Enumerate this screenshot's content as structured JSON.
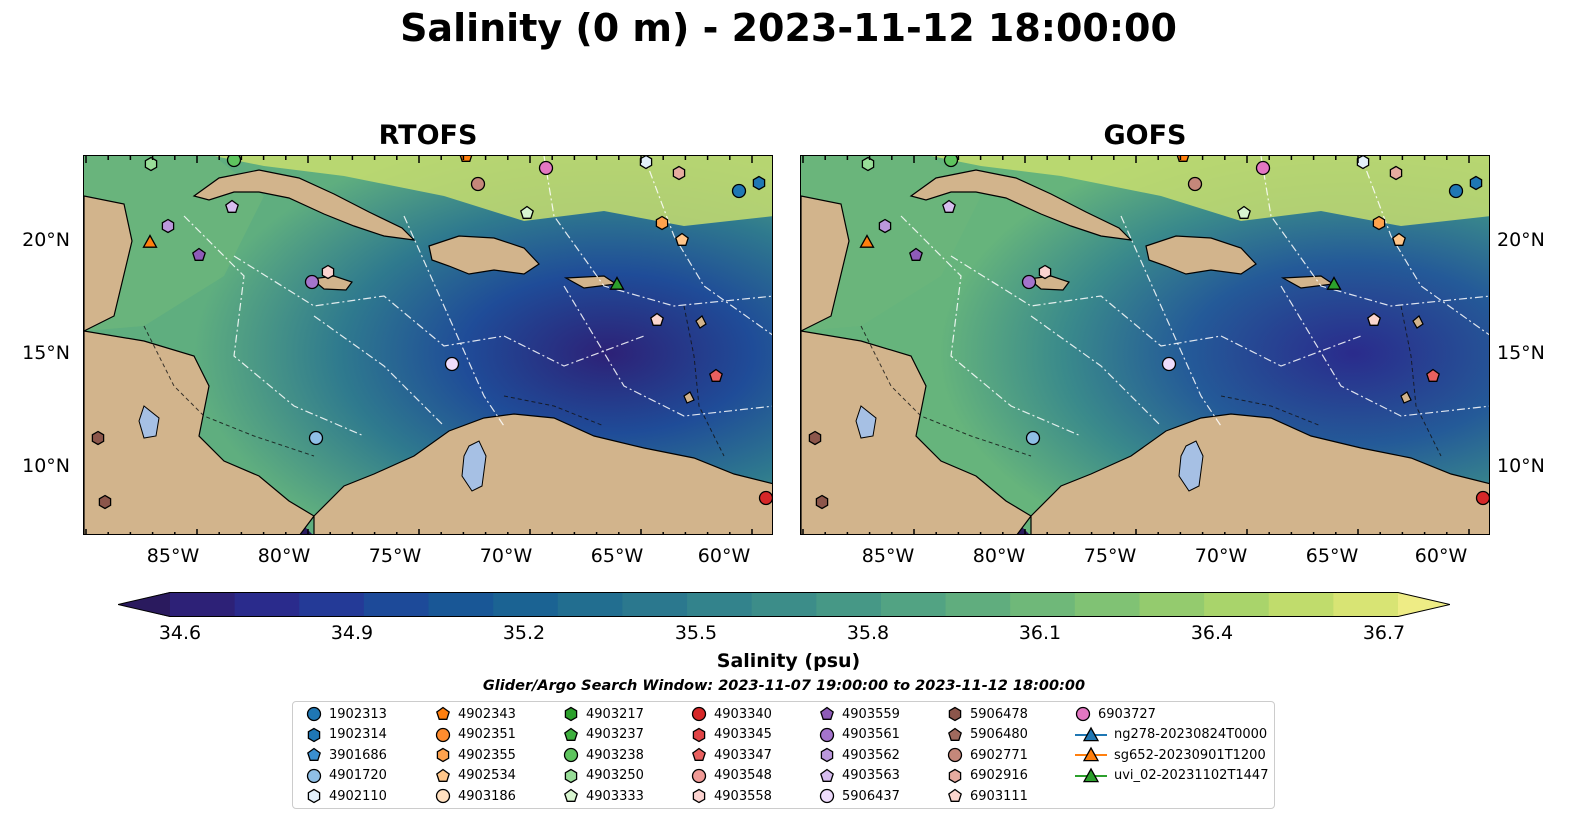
{
  "title": "Salinity (0 m) - 2023-11-12 18:00:00",
  "panels": [
    {
      "title": "RTOFS"
    },
    {
      "title": "GOFS"
    }
  ],
  "lat_ticks": [
    "20°N",
    "15°N",
    "10°N"
  ],
  "lon_ticks": [
    "85°W",
    "80°W",
    "75°W",
    "70°W",
    "65°W",
    "60°W"
  ],
  "colorbar": {
    "label": "Salinity (psu)",
    "ticks": [
      "34.6",
      "34.9",
      "35.2",
      "35.5",
      "35.8",
      "36.1",
      "36.4",
      "36.7"
    ],
    "colors": [
      "#2a1a5e",
      "#2d2177",
      "#2a2b8c",
      "#243a97",
      "#1d4a99",
      "#195796",
      "#1b6393",
      "#226e90",
      "#2b788e",
      "#33838c",
      "#3c8d89",
      "#469886",
      "#52a383",
      "#60ad7e",
      "#6fb879",
      "#80c274",
      "#94cb6e",
      "#a9d46b",
      "#c0dc6c",
      "#d8e474",
      "#eeec85"
    ],
    "extend": "both"
  },
  "search_window": "Glider/Argo Search Window: 2023-11-07 19:00:00 to 2023-11-12 18:00:00",
  "legend": {
    "columns": [
      [
        {
          "label": "1902313",
          "marker": "circle",
          "color": "#1f77b4"
        },
        {
          "label": "1902314",
          "marker": "hexagon",
          "color": "#1f77b4"
        },
        {
          "label": "3901686",
          "marker": "pentagon",
          "color": "#3a8fd0"
        },
        {
          "label": "4901720",
          "marker": "circle",
          "color": "#8fbfe6"
        },
        {
          "label": "4902110",
          "marker": "hexagon",
          "color": "#e3f0fa"
        }
      ],
      [
        {
          "label": "4902343",
          "marker": "pentagon",
          "color": "#ff7f0e"
        },
        {
          "label": "4902351",
          "marker": "circle",
          "color": "#ff8c2e"
        },
        {
          "label": "4902355",
          "marker": "hexagon",
          "color": "#ffa24d"
        },
        {
          "label": "4902534",
          "marker": "pentagon",
          "color": "#ffc68a"
        },
        {
          "label": "4903186",
          "marker": "circle",
          "color": "#ffe0c0"
        }
      ],
      [
        {
          "label": "4903217",
          "marker": "hexagon",
          "color": "#2ca02c"
        },
        {
          "label": "4903237",
          "marker": "pentagon",
          "color": "#3fb03f"
        },
        {
          "label": "4903238",
          "marker": "circle",
          "color": "#5ec45e"
        },
        {
          "label": "4903250",
          "marker": "hexagon",
          "color": "#98dd98"
        },
        {
          "label": "4903333",
          "marker": "pentagon",
          "color": "#d8f5d0"
        }
      ],
      [
        {
          "label": "4903340",
          "marker": "circle",
          "color": "#d62728"
        },
        {
          "label": "4903345",
          "marker": "hexagon",
          "color": "#e04446"
        },
        {
          "label": "4903347",
          "marker": "pentagon",
          "color": "#e8605f"
        },
        {
          "label": "4903548",
          "marker": "circle",
          "color": "#f09a96"
        },
        {
          "label": "4903558",
          "marker": "hexagon",
          "color": "#fbd3d0"
        }
      ],
      [
        {
          "label": "4903559",
          "marker": "pentagon",
          "color": "#8e5bb8"
        },
        {
          "label": "4903561",
          "marker": "circle",
          "color": "#a474cc"
        },
        {
          "label": "4903562",
          "marker": "hexagon",
          "color": "#bb98dc"
        },
        {
          "label": "4903563",
          "marker": "pentagon",
          "color": "#d6bdee"
        },
        {
          "label": "5906437",
          "marker": "circle",
          "color": "#efdcfc"
        }
      ],
      [
        {
          "label": "5906478",
          "marker": "hexagon",
          "color": "#8c564b"
        },
        {
          "label": "5906480",
          "marker": "pentagon",
          "color": "#a06a5e"
        },
        {
          "label": "6902771",
          "marker": "circle",
          "color": "#c5877a"
        },
        {
          "label": "6902916",
          "marker": "hexagon",
          "color": "#e6aca0"
        },
        {
          "label": "6903111",
          "marker": "pentagon",
          "color": "#fbd6ce"
        }
      ],
      [
        {
          "label": "6903727",
          "marker": "circle",
          "color": "#e377c2"
        },
        {
          "label": "ng278-20230824T0000",
          "marker": "triangle-line",
          "color": "#1f77b4"
        },
        {
          "label": "sg652-20230901T1200",
          "marker": "triangle-line",
          "color": "#ff7f0e"
        },
        {
          "label": "uvi_02-20231102T1447",
          "marker": "triangle-line",
          "color": "#2ca02c"
        }
      ]
    ]
  }
}
